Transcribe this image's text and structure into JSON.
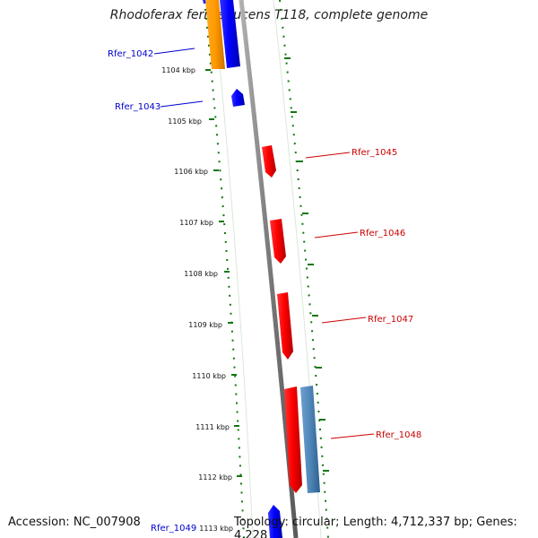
{
  "title": "Rhodoferax ferrireducens T118, complete genome",
  "footer": {
    "accession": "Accession: NC_007908",
    "summary": "Topology: circular; Length: 4,712,337 bp; Genes: 4,228"
  },
  "ticks": [
    "1104 kbp",
    "1105 kbp",
    "1106 kbp",
    "1107 kbp",
    "1108 kbp",
    "1109 kbp",
    "1110 kbp",
    "1111 kbp",
    "1112 kbp",
    "1113 kbp"
  ],
  "genes": [
    {
      "label": "Rfer_1042",
      "strand": "reverse",
      "color": "#0000cc"
    },
    {
      "label": "Rfer_1043",
      "strand": "reverse",
      "color": "#0000cc"
    },
    {
      "label": "Rfer_1045",
      "strand": "forward",
      "color": "#cc0000"
    },
    {
      "label": "Rfer_1046",
      "strand": "forward",
      "color": "#cc0000"
    },
    {
      "label": "Rfer_1047",
      "strand": "forward",
      "color": "#cc0000"
    },
    {
      "label": "Rfer_1048",
      "strand": "forward",
      "color": "#cc0000"
    },
    {
      "label": "Rfer_1049",
      "strand": "reverse",
      "color": "#0000cc"
    }
  ],
  "colors": {
    "reverse_strand": "#0000ff",
    "forward_strand": "#ff0000",
    "other_feature_orange": "#ff9900",
    "other_feature_steel": "#4f86b8",
    "backbone": "#888888",
    "tick_marks": "#117711"
  }
}
